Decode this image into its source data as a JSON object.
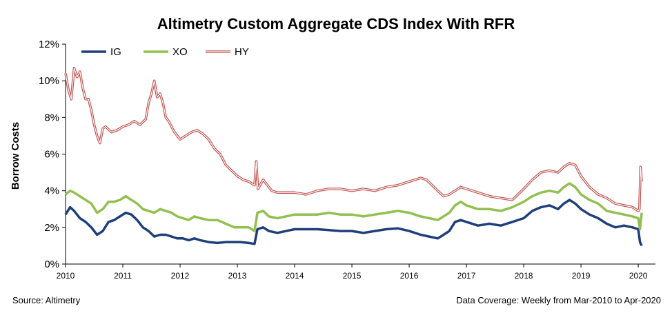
{
  "chart_data": {
    "type": "line",
    "title": "Altimetry Custom Aggregate CDS Index With RFR",
    "ylabel": "Borrow Costs",
    "xlabel": "",
    "ylim": [
      0,
      12
    ],
    "yticks": [
      "0%",
      "2%",
      "4%",
      "6%",
      "8%",
      "10%",
      "12%"
    ],
    "xlim": [
      2010,
      2020.3
    ],
    "xticks": [
      "2010",
      "2011",
      "2012",
      "2013",
      "2014",
      "2015",
      "2016",
      "2017",
      "2018",
      "2019",
      "2020"
    ],
    "legend_position": "top-left",
    "grid": false,
    "series": [
      {
        "name": "IG",
        "color": "#1f3f7a",
        "style": "solid",
        "x": [
          2010.0,
          2010.08,
          2010.15,
          2010.25,
          2010.35,
          2010.45,
          2010.55,
          2010.65,
          2010.75,
          2010.85,
          2010.95,
          2011.05,
          2011.15,
          2011.25,
          2011.35,
          2011.45,
          2011.55,
          2011.65,
          2011.75,
          2011.85,
          2011.95,
          2012.05,
          2012.15,
          2012.25,
          2012.35,
          2012.5,
          2012.65,
          2012.8,
          2012.95,
          2013.05,
          2013.2,
          2013.3,
          2013.35,
          2013.45,
          2013.55,
          2013.7,
          2013.85,
          2014.0,
          2014.2,
          2014.4,
          2014.6,
          2014.8,
          2015.0,
          2015.2,
          2015.4,
          2015.6,
          2015.8,
          2016.0,
          2016.2,
          2016.35,
          2016.5,
          2016.6,
          2016.7,
          2016.8,
          2016.9,
          2017.0,
          2017.2,
          2017.4,
          2017.6,
          2017.8,
          2018.0,
          2018.15,
          2018.3,
          2018.45,
          2018.6,
          2018.7,
          2018.8,
          2018.9,
          2019.0,
          2019.15,
          2019.3,
          2019.45,
          2019.6,
          2019.75,
          2019.9,
          2020.0,
          2020.03,
          2020.06
        ],
        "values": [
          2.7,
          3.1,
          2.9,
          2.5,
          2.3,
          2.0,
          1.6,
          1.8,
          2.3,
          2.4,
          2.6,
          2.8,
          2.7,
          2.4,
          2.0,
          1.8,
          1.5,
          1.6,
          1.6,
          1.5,
          1.4,
          1.4,
          1.3,
          1.4,
          1.3,
          1.2,
          1.15,
          1.2,
          1.2,
          1.2,
          1.15,
          1.1,
          1.9,
          2.0,
          1.8,
          1.7,
          1.8,
          1.9,
          1.9,
          1.9,
          1.85,
          1.8,
          1.8,
          1.7,
          1.8,
          1.9,
          1.95,
          1.8,
          1.6,
          1.5,
          1.4,
          1.6,
          1.8,
          2.3,
          2.4,
          2.3,
          2.1,
          2.2,
          2.1,
          2.3,
          2.5,
          2.9,
          3.1,
          3.2,
          3.0,
          3.3,
          3.5,
          3.3,
          3.0,
          2.7,
          2.5,
          2.2,
          2.0,
          2.1,
          2.0,
          1.9,
          1.2,
          1.0
        ]
      },
      {
        "name": "XO",
        "color": "#92c050",
        "style": "solid",
        "x": [
          2010.0,
          2010.08,
          2010.15,
          2010.25,
          2010.35,
          2010.45,
          2010.55,
          2010.65,
          2010.75,
          2010.85,
          2010.95,
          2011.05,
          2011.15,
          2011.25,
          2011.35,
          2011.45,
          2011.55,
          2011.65,
          2011.75,
          2011.85,
          2011.95,
          2012.05,
          2012.15,
          2012.25,
          2012.35,
          2012.5,
          2012.65,
          2012.8,
          2012.95,
          2013.05,
          2013.2,
          2013.3,
          2013.35,
          2013.45,
          2013.55,
          2013.7,
          2013.85,
          2014.0,
          2014.2,
          2014.4,
          2014.6,
          2014.8,
          2015.0,
          2015.2,
          2015.4,
          2015.6,
          2015.8,
          2016.0,
          2016.2,
          2016.35,
          2016.5,
          2016.6,
          2016.7,
          2016.8,
          2016.9,
          2017.0,
          2017.2,
          2017.4,
          2017.6,
          2017.8,
          2018.0,
          2018.15,
          2018.3,
          2018.45,
          2018.6,
          2018.7,
          2018.8,
          2018.9,
          2019.0,
          2019.15,
          2019.3,
          2019.45,
          2019.6,
          2019.75,
          2019.9,
          2020.0,
          2020.03,
          2020.06
        ],
        "values": [
          3.8,
          4.0,
          3.9,
          3.7,
          3.5,
          3.3,
          2.8,
          3.0,
          3.4,
          3.4,
          3.5,
          3.7,
          3.5,
          3.3,
          3.0,
          2.9,
          2.8,
          3.0,
          2.9,
          2.8,
          2.6,
          2.5,
          2.4,
          2.6,
          2.5,
          2.4,
          2.4,
          2.2,
          2.0,
          2.0,
          2.0,
          1.8,
          2.8,
          2.9,
          2.6,
          2.5,
          2.6,
          2.7,
          2.7,
          2.7,
          2.8,
          2.7,
          2.7,
          2.6,
          2.7,
          2.8,
          2.9,
          2.8,
          2.6,
          2.5,
          2.4,
          2.6,
          2.8,
          3.2,
          3.4,
          3.2,
          3.0,
          3.0,
          2.9,
          3.1,
          3.4,
          3.7,
          3.9,
          4.0,
          3.9,
          4.2,
          4.4,
          4.2,
          3.8,
          3.5,
          3.3,
          2.9,
          2.8,
          2.7,
          2.6,
          2.5,
          1.9,
          2.8
        ]
      },
      {
        "name": "HY",
        "color": "#c0504d",
        "style": "double",
        "x": [
          2010.0,
          2010.05,
          2010.1,
          2010.15,
          2010.2,
          2010.25,
          2010.3,
          2010.35,
          2010.4,
          2010.45,
          2010.5,
          2010.55,
          2010.6,
          2010.65,
          2010.7,
          2010.8,
          2010.9,
          2011.0,
          2011.1,
          2011.2,
          2011.3,
          2011.4,
          2011.45,
          2011.5,
          2011.55,
          2011.6,
          2011.65,
          2011.7,
          2011.75,
          2011.8,
          2011.9,
          2012.0,
          2012.1,
          2012.2,
          2012.3,
          2012.4,
          2012.5,
          2012.6,
          2012.7,
          2012.8,
          2012.9,
          2013.0,
          2013.1,
          2013.2,
          2013.3,
          2013.33,
          2013.36,
          2013.45,
          2013.5,
          2013.6,
          2013.7,
          2013.8,
          2013.9,
          2014.0,
          2014.2,
          2014.4,
          2014.6,
          2014.8,
          2015.0,
          2015.2,
          2015.4,
          2015.6,
          2015.8,
          2016.0,
          2016.2,
          2016.3,
          2016.4,
          2016.5,
          2016.6,
          2016.7,
          2016.8,
          2016.9,
          2017.0,
          2017.2,
          2017.4,
          2017.6,
          2017.8,
          2018.0,
          2018.15,
          2018.3,
          2018.45,
          2018.6,
          2018.7,
          2018.8,
          2018.9,
          2019.0,
          2019.15,
          2019.3,
          2019.45,
          2019.6,
          2019.75,
          2019.9,
          2020.0,
          2020.02,
          2020.04,
          2020.06
        ],
        "values": [
          10.4,
          9.5,
          9.0,
          10.7,
          10.2,
          10.5,
          9.6,
          9.0,
          9.0,
          8.4,
          7.6,
          7.0,
          6.6,
          7.4,
          7.5,
          7.2,
          7.3,
          7.5,
          7.6,
          7.8,
          7.6,
          7.9,
          8.8,
          9.3,
          10.0,
          9.1,
          9.3,
          8.8,
          8.0,
          7.8,
          7.2,
          6.8,
          7.0,
          7.2,
          7.3,
          7.1,
          6.8,
          6.3,
          6.0,
          5.4,
          5.1,
          4.8,
          4.6,
          4.5,
          4.3,
          5.6,
          4.1,
          4.6,
          4.4,
          4.0,
          3.9,
          3.9,
          3.9,
          3.9,
          3.8,
          4.0,
          4.1,
          4.1,
          4.0,
          4.1,
          4.0,
          4.2,
          4.3,
          4.5,
          4.7,
          4.6,
          4.3,
          4.0,
          3.7,
          3.8,
          4.0,
          4.2,
          4.1,
          3.9,
          3.7,
          3.6,
          3.5,
          4.1,
          4.6,
          5.0,
          5.1,
          5.0,
          5.3,
          5.5,
          5.4,
          4.8,
          4.2,
          3.8,
          3.6,
          3.3,
          3.2,
          3.1,
          2.9,
          3.0,
          5.3,
          4.5
        ]
      }
    ]
  },
  "footer": {
    "source": "Source: Altimetry",
    "coverage": "Data Coverage: Weekly from Mar-2010 to Apr-2020"
  }
}
